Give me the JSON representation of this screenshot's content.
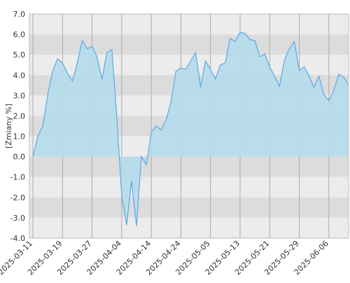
{
  "chart_data": {
    "type": "area",
    "y_label": "[Zmiany %]",
    "categories": [
      "2025-03-11",
      null,
      null,
      null,
      null,
      null,
      "2025-03-19",
      null,
      null,
      null,
      null,
      null,
      "2025-03-27",
      null,
      null,
      null,
      null,
      null,
      "2025-04-04",
      null,
      null,
      null,
      null,
      null,
      "2025-04-14",
      null,
      null,
      null,
      null,
      null,
      "2025-04-24",
      null,
      null,
      null,
      null,
      null,
      "2025-05-05",
      null,
      null,
      null,
      null,
      null,
      "2025-05-13",
      null,
      null,
      null,
      null,
      null,
      "2025-05-21",
      null,
      null,
      null,
      null,
      null,
      "2025-05-29",
      null,
      null,
      null,
      null,
      null,
      "2025-06-06",
      null,
      null,
      null,
      null
    ],
    "values": [
      0,
      1.0,
      1.5,
      3.0,
      4.2,
      4.8,
      4.6,
      4.1,
      3.7,
      4.6,
      5.7,
      5.3,
      5.4,
      4.9,
      3.8,
      5.1,
      5.25,
      2.0,
      -1.9,
      -3.35,
      -1.2,
      -3.4,
      0.0,
      -0.4,
      1.2,
      1.5,
      1.3,
      1.8,
      2.7,
      4.2,
      4.35,
      4.3,
      4.7,
      5.1,
      3.4,
      4.7,
      4.3,
      3.8,
      4.5,
      4.6,
      5.8,
      5.65,
      6.1,
      6.05,
      5.75,
      5.7,
      4.9,
      5.05,
      4.4,
      3.95,
      3.45,
      4.75,
      5.3,
      5.65,
      4.25,
      4.4,
      3.95,
      3.4,
      3.95,
      3.05,
      2.75,
      3.25,
      4.05,
      3.9,
      3.5
    ],
    "color": "#5aa9e6",
    "fill": "#b5dcec",
    "ylim": [
      -4,
      7
    ],
    "yticks": [
      {
        "value": -4,
        "label": "-4.0"
      },
      {
        "value": -3,
        "label": "-3.0"
      },
      {
        "value": -2,
        "label": "-2.0"
      },
      {
        "value": -1,
        "label": "-1.0"
      },
      {
        "value": 0,
        "label": "0.0"
      },
      {
        "value": 1,
        "label": "1.0"
      },
      {
        "value": 2,
        "label": "2.0"
      },
      {
        "value": 3,
        "label": "3.0"
      },
      {
        "value": 4,
        "label": "4.0"
      },
      {
        "value": 5,
        "label": "5.0"
      },
      {
        "value": 6,
        "label": "6.0"
      },
      {
        "value": 7,
        "label": "7.0"
      }
    ],
    "grid": true
  }
}
